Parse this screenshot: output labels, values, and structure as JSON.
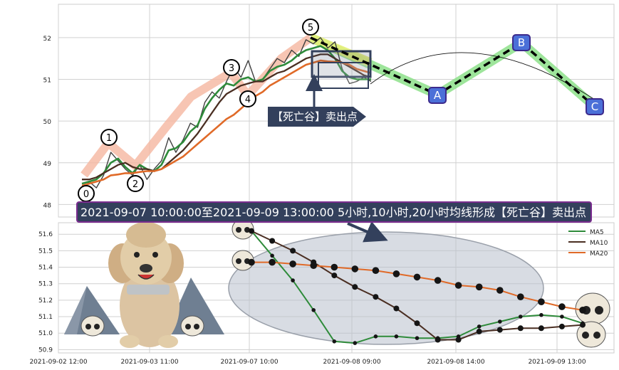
{
  "headline": "2021-09-07 10:00:00至2021-09-09 13:00:00 5小时,10小时,20小时均线形成【死亡谷】卖出点",
  "colors": {
    "ma5": "#2e8b3a",
    "ma10": "#4a2e22",
    "ma20": "#e06a28",
    "price": "#404040",
    "banner_bg": "#33405c",
    "banner_border": "#7a2c8f",
    "box_fill": "#3a4a66",
    "pivot_fill": "#4b70d8",
    "pivot_border": "#3c2a8c",
    "legband": "#8de08a",
    "legband_yellow": "#e6f07a",
    "highlight_pink": "#f5b6a0"
  },
  "top_callout": {
    "text": "【死亡谷】卖出点"
  },
  "wave_labels": [
    "0",
    "1",
    "2",
    "3",
    "4",
    "5"
  ],
  "pattern_labels": [
    "A",
    "B",
    "C"
  ],
  "chart_data": [
    {
      "type": "line",
      "title": "",
      "x_ticks": [
        "2021-09-02 12:00",
        "2021-09-03 11:00",
        "2021-09-07 10:00",
        "2021-09-08 09:00",
        "2021-09-08 14:00",
        "2021-09-09 13:00"
      ],
      "y_ticks": [
        "48",
        "49",
        "50",
        "51",
        "52"
      ],
      "ylim": [
        47.7,
        52.8
      ],
      "grid": true,
      "series": [
        {
          "id": "price",
          "values": [
            48.3,
            48.55,
            48.4,
            48.7,
            49.25,
            49.05,
            48.85,
            48.7,
            48.95,
            48.6,
            48.85,
            49.05,
            49.6,
            49.25,
            49.55,
            49.95,
            49.85,
            50.45,
            50.7,
            50.55,
            50.95,
            51.3,
            51.05,
            51.45,
            50.95,
            51.0,
            51.25,
            51.5,
            51.4,
            51.7,
            51.55,
            51.95,
            51.85,
            52.0,
            51.75,
            51.9,
            51.25,
            50.9,
            50.95,
            51.05,
            50.95
          ]
        },
        {
          "id": "ma5",
          "values": [
            48.5,
            48.55,
            48.6,
            48.75,
            49.0,
            49.1,
            48.9,
            48.75,
            48.95,
            48.85,
            48.8,
            48.95,
            49.3,
            49.35,
            49.5,
            49.75,
            49.9,
            50.3,
            50.55,
            50.75,
            50.9,
            50.85,
            51.0,
            51.05,
            50.95,
            51.0,
            51.2,
            51.3,
            51.35,
            51.45,
            51.6,
            51.7,
            51.75,
            51.8,
            51.7,
            51.5,
            51.2,
            51.05,
            51.0,
            51.0,
            51.0
          ]
        },
        {
          "id": "ma10",
          "values": [
            48.6,
            48.6,
            48.65,
            48.75,
            48.85,
            48.95,
            49.0,
            48.9,
            48.85,
            48.85,
            48.8,
            48.85,
            49.0,
            49.15,
            49.3,
            49.5,
            49.7,
            49.95,
            50.2,
            50.45,
            50.65,
            50.75,
            50.85,
            50.9,
            50.95,
            50.95,
            51.05,
            51.15,
            51.2,
            51.3,
            51.4,
            51.5,
            51.55,
            51.6,
            51.6,
            51.5,
            51.4,
            51.3,
            51.2,
            51.1,
            51.05
          ]
        },
        {
          "id": "ma20",
          "values": [
            48.45,
            48.5,
            48.55,
            48.6,
            48.7,
            48.72,
            48.75,
            48.75,
            48.78,
            48.8,
            48.8,
            48.85,
            48.95,
            49.05,
            49.15,
            49.3,
            49.45,
            49.6,
            49.75,
            49.9,
            50.05,
            50.15,
            50.3,
            50.45,
            50.6,
            50.7,
            50.85,
            50.95,
            51.05,
            51.15,
            51.25,
            51.35,
            51.4,
            51.45,
            51.43,
            51.42,
            51.4,
            51.35,
            51.25,
            51.2,
            51.15
          ]
        }
      ]
    },
    {
      "type": "line",
      "title": "",
      "y_ticks": [
        "50.9",
        "51.0",
        "51.1",
        "51.2",
        "51.3",
        "51.4",
        "51.5",
        "51.6"
      ],
      "ylim": [
        50.88,
        51.67
      ],
      "grid": true,
      "legend": "top-right",
      "series": [
        {
          "id": "ma5",
          "name": "MA5",
          "values": [
            51.62,
            51.47,
            51.32,
            51.14,
            50.95,
            50.94,
            50.98,
            50.98,
            50.97,
            50.97,
            50.98,
            51.04,
            51.07,
            51.1,
            51.11,
            51.1,
            51.06
          ]
        },
        {
          "id": "ma10",
          "name": "MA10",
          "values": [
            51.62,
            51.56,
            51.5,
            51.43,
            51.35,
            51.28,
            51.22,
            51.15,
            51.06,
            50.96,
            50.96,
            51.01,
            51.02,
            51.03,
            51.03,
            51.04,
            51.05
          ]
        },
        {
          "id": "ma20",
          "name": "MA20",
          "values": [
            51.43,
            51.43,
            51.42,
            51.41,
            51.4,
            51.39,
            51.38,
            51.36,
            51.34,
            51.32,
            51.29,
            51.28,
            51.26,
            51.22,
            51.19,
            51.16,
            51.14
          ]
        }
      ]
    }
  ]
}
